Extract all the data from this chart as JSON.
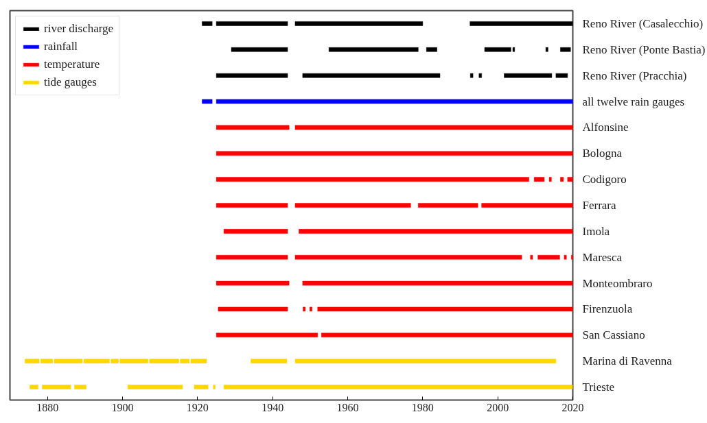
{
  "chart_data": {
    "type": "bar",
    "orientation": "horizontal",
    "categories": [
      "Reno River (Casalecchio)",
      "Reno River (Ponte Bastia)",
      "Reno River (Pracchia)",
      "all twelve rain gauges",
      "Alfonsine",
      "Bologna",
      "Codigoro",
      "Ferrara",
      "Imola",
      "Maresca",
      "Monteombraro",
      "Firenzuola",
      "San Cassiano",
      "Marina di Ravenna",
      "Trieste"
    ],
    "xlim": [
      1870,
      2020
    ],
    "xticks": [
      1880,
      1900,
      1920,
      1940,
      1960,
      1980,
      2000,
      2020
    ],
    "grid": false,
    "legend": "top left",
    "series": [
      {
        "name": "river discharge",
        "color": "#000000",
        "values": [
          2.7,
          15,
          19,
          null,
          null,
          null,
          null,
          null,
          null,
          null,
          null,
          null,
          null,
          null,
          null
        ],
        "base": [
          1921.2,
          1929,
          1925,
          null,
          null,
          null,
          null,
          null,
          null,
          null,
          null,
          null,
          null,
          null,
          null
        ]
      },
      {
        "color": "#000000",
        "values": [
          19,
          23.8,
          36.6,
          null,
          null,
          null,
          null,
          null,
          null,
          null,
          null,
          null,
          null,
          null,
          null
        ],
        "base": [
          1925,
          1955,
          1948,
          null,
          null,
          null,
          null,
          null,
          null,
          null,
          null,
          null,
          null,
          null,
          null
        ]
      },
      {
        "color": "#000000",
        "values": [
          34,
          2.8,
          0.7,
          null,
          null,
          null,
          null,
          null,
          null,
          null,
          null,
          null,
          null,
          null,
          null
        ],
        "base": [
          1946,
          1981,
          1992.7,
          null,
          null,
          null,
          null,
          null,
          null,
          null,
          null,
          null,
          null,
          null,
          null
        ]
      },
      {
        "color": "#000000",
        "values": [
          27.4,
          7,
          0.7,
          null,
          null,
          null,
          null,
          null,
          null,
          null,
          null,
          null,
          null,
          null,
          null
        ],
        "base": [
          1992.6,
          1996.5,
          1995,
          null,
          null,
          null,
          null,
          null,
          null,
          null,
          null,
          null,
          null,
          null,
          null
        ]
      },
      {
        "color": "#000000",
        "values": [
          null,
          0.5,
          12.7,
          null,
          null,
          null,
          null,
          null,
          null,
          null,
          null,
          null,
          null,
          null,
          null
        ],
        "base": [
          null,
          2004,
          2001.7,
          null,
          null,
          null,
          null,
          null,
          null,
          null,
          null,
          null,
          null,
          null,
          null
        ]
      },
      {
        "color": "#000000",
        "values": [
          null,
          0.6,
          3.1,
          null,
          null,
          null,
          null,
          null,
          null,
          null,
          null,
          null,
          null,
          null,
          null
        ],
        "base": [
          null,
          2012.8,
          2015.5,
          null,
          null,
          null,
          null,
          null,
          null,
          null,
          null,
          null,
          null,
          null,
          null
        ]
      },
      {
        "color": "#000000",
        "values": [
          null,
          2.7,
          null,
          null,
          null,
          null,
          null,
          null,
          null,
          null,
          null,
          null,
          null,
          null,
          null
        ],
        "base": [
          null,
          2016.7,
          null,
          null,
          null,
          null,
          null,
          null,
          null,
          null,
          null,
          null,
          null,
          null,
          null
        ]
      },
      {
        "name": "rainfall",
        "color": "#0000ff",
        "values": [
          null,
          null,
          null,
          2.7,
          null,
          null,
          null,
          null,
          null,
          null,
          null,
          null,
          null,
          null,
          null
        ],
        "base": [
          null,
          null,
          null,
          1921.2,
          null,
          null,
          null,
          null,
          null,
          null,
          null,
          null,
          null,
          null,
          null
        ]
      },
      {
        "color": "#0000ff",
        "values": [
          null,
          null,
          null,
          95,
          null,
          null,
          null,
          null,
          null,
          null,
          null,
          null,
          null,
          null,
          null
        ],
        "base": [
          null,
          null,
          null,
          1925,
          null,
          null,
          null,
          null,
          null,
          null,
          null,
          null,
          null,
          null,
          null
        ]
      },
      {
        "name": "temperature",
        "color": "#ff0000",
        "values": [
          null,
          null,
          null,
          null,
          19.4,
          95,
          83.3,
          19,
          17,
          19,
          19.4,
          18.5,
          27,
          null,
          null
        ],
        "base": [
          null,
          null,
          null,
          null,
          1925,
          1925,
          1925,
          1925,
          1927,
          1925,
          1925,
          1925.5,
          1925,
          null,
          null
        ]
      },
      {
        "color": "#ff0000",
        "values": [
          null,
          null,
          null,
          null,
          74,
          null,
          2.7,
          30.8,
          73,
          60.4,
          72,
          0.6,
          67,
          null,
          null
        ],
        "base": [
          null,
          null,
          null,
          null,
          1946,
          null,
          2009.7,
          1946,
          1947,
          1946,
          1948,
          1948.1,
          1953,
          null,
          null
        ]
      },
      {
        "color": "#ff0000",
        "values": [
          null,
          null,
          null,
          null,
          null,
          null,
          0.6,
          15.9,
          null,
          0.6,
          null,
          0.6,
          null,
          null,
          null
        ],
        "base": [
          null,
          null,
          null,
          null,
          null,
          null,
          2013.7,
          1978.8,
          null,
          2008.7,
          null,
          1949.9,
          null,
          null,
          null
        ]
      },
      {
        "color": "#ff0000",
        "values": [
          null,
          null,
          null,
          null,
          null,
          null,
          0.8,
          24.3,
          null,
          5.8,
          null,
          68,
          null,
          null,
          null
        ],
        "base": [
          null,
          null,
          null,
          null,
          null,
          null,
          2016.7,
          1995.7,
          null,
          2010.7,
          null,
          1952,
          null,
          null,
          null
        ]
      },
      {
        "color": "#ff0000",
        "values": [
          null,
          null,
          null,
          null,
          null,
          null,
          1.4,
          null,
          null,
          0.6,
          null,
          null,
          null,
          null,
          null
        ],
        "base": [
          null,
          null,
          null,
          null,
          null,
          null,
          2018.6,
          null,
          null,
          2017.7,
          null,
          null,
          null,
          null,
          null
        ]
      },
      {
        "color": "#ff0000",
        "values": [
          null,
          null,
          null,
          null,
          null,
          null,
          null,
          null,
          null,
          0.4,
          null,
          null,
          null,
          null,
          null
        ],
        "base": [
          null,
          null,
          null,
          null,
          null,
          null,
          null,
          null,
          null,
          2019.6,
          null,
          null,
          null,
          null,
          null
        ]
      },
      {
        "name": "tide gauges",
        "color": "#ffd700",
        "values": [
          null,
          null,
          null,
          null,
          null,
          null,
          null,
          null,
          null,
          null,
          null,
          null,
          null,
          3.8,
          2.2
        ],
        "base": [
          null,
          null,
          null,
          null,
          null,
          null,
          null,
          null,
          null,
          null,
          null,
          null,
          null,
          1874,
          1875.3
        ]
      },
      {
        "color": "#ffd700",
        "values": [
          null,
          null,
          null,
          null,
          null,
          null,
          null,
          null,
          null,
          null,
          null,
          null,
          null,
          3.2,
          7.6
        ],
        "base": [
          null,
          null,
          null,
          null,
          null,
          null,
          null,
          null,
          null,
          null,
          null,
          null,
          null,
          1878.2,
          1878.6
        ]
      },
      {
        "color": "#ffd700",
        "values": [
          null,
          null,
          null,
          null,
          null,
          null,
          null,
          null,
          null,
          null,
          null,
          null,
          null,
          7.5,
          3.1
        ],
        "base": [
          null,
          null,
          null,
          null,
          null,
          null,
          null,
          null,
          null,
          null,
          null,
          null,
          null,
          1881.8,
          1887.2
        ]
      },
      {
        "color": "#ffd700",
        "values": [
          null,
          null,
          null,
          null,
          null,
          null,
          null,
          null,
          null,
          null,
          null,
          null,
          null,
          6.8,
          14.6
        ],
        "base": [
          null,
          null,
          null,
          null,
          null,
          null,
          null,
          null,
          null,
          null,
          null,
          null,
          null,
          1889.7,
          1901.4
        ]
      },
      {
        "color": "#ffd700",
        "values": [
          null,
          null,
          null,
          null,
          null,
          null,
          null,
          null,
          null,
          null,
          null,
          null,
          null,
          2,
          3.7
        ],
        "base": [
          null,
          null,
          null,
          null,
          null,
          null,
          null,
          null,
          null,
          null,
          null,
          null,
          null,
          1896.9,
          1919.1
        ]
      },
      {
        "color": "#ffd700",
        "values": [
          null,
          null,
          null,
          null,
          null,
          null,
          null,
          null,
          null,
          null,
          null,
          null,
          null,
          7.5,
          0.5
        ],
        "base": [
          null,
          null,
          null,
          null,
          null,
          null,
          null,
          null,
          null,
          null,
          null,
          null,
          null,
          1899.3,
          1924.2
        ]
      },
      {
        "color": "#ffd700",
        "values": [
          null,
          null,
          null,
          null,
          null,
          null,
          null,
          null,
          null,
          null,
          null,
          null,
          null,
          7.8,
          93
        ],
        "base": [
          null,
          null,
          null,
          null,
          null,
          null,
          null,
          null,
          null,
          null,
          null,
          null,
          null,
          1907.2,
          1927
        ]
      },
      {
        "color": "#ffd700",
        "values": [
          null,
          null,
          null,
          null,
          null,
          null,
          null,
          null,
          null,
          null,
          null,
          null,
          null,
          2.4,
          null
        ],
        "base": [
          null,
          null,
          null,
          null,
          null,
          null,
          null,
          null,
          null,
          null,
          null,
          null,
          null,
          1915.4,
          null
        ]
      },
      {
        "color": "#ffd700",
        "values": [
          null,
          null,
          null,
          null,
          null,
          null,
          null,
          null,
          null,
          null,
          null,
          null,
          null,
          4.2,
          null
        ],
        "base": [
          null,
          null,
          null,
          null,
          null,
          null,
          null,
          null,
          null,
          null,
          null,
          null,
          null,
          1918.2,
          null
        ]
      },
      {
        "color": "#ffd700",
        "values": [
          null,
          null,
          null,
          null,
          null,
          null,
          null,
          null,
          null,
          null,
          null,
          null,
          null,
          9.6,
          null
        ],
        "base": [
          null,
          null,
          null,
          null,
          null,
          null,
          null,
          null,
          null,
          null,
          null,
          null,
          null,
          1934.2,
          null
        ]
      },
      {
        "color": "#ffd700",
        "values": [
          null,
          null,
          null,
          null,
          null,
          null,
          null,
          null,
          null,
          null,
          null,
          null,
          null,
          69.5,
          null
        ],
        "base": [
          null,
          null,
          null,
          null,
          null,
          null,
          null,
          null,
          null,
          null,
          null,
          null,
          null,
          1946,
          null
        ]
      }
    ]
  }
}
